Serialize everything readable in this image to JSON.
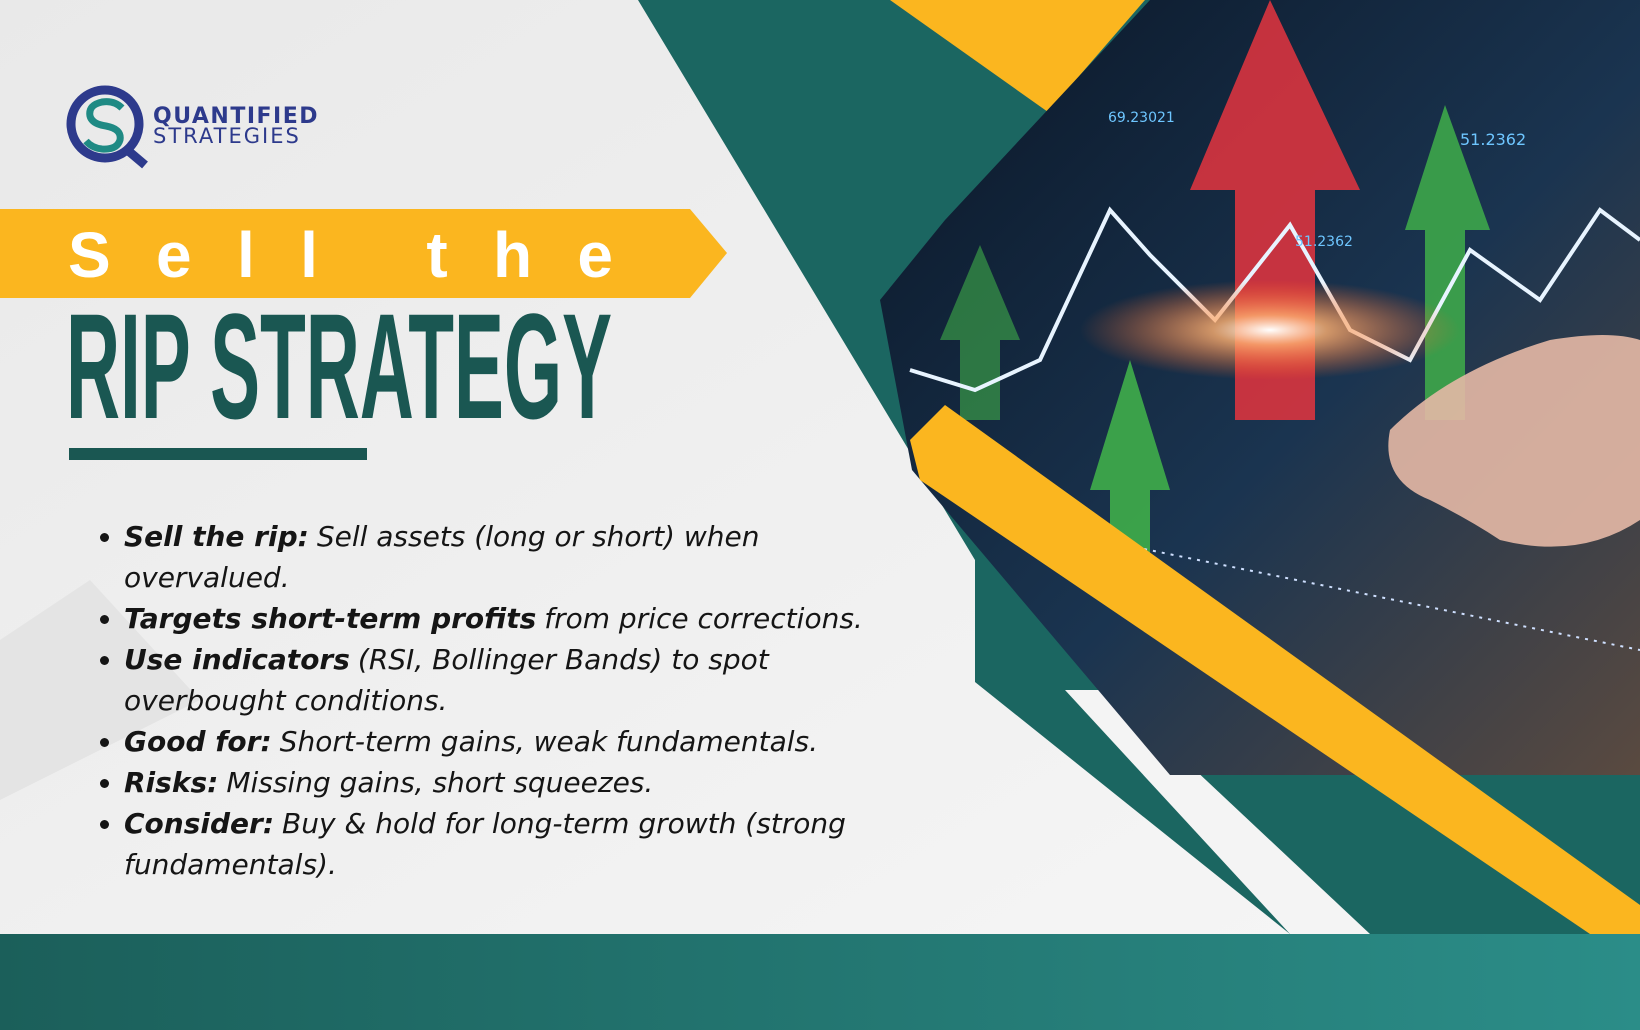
{
  "logo": {
    "line1": "QUANTIFIED",
    "line2": "STRATEGIES"
  },
  "title": {
    "line1": "Sell the",
    "line2": "RIP STRATEGY"
  },
  "bullets": [
    {
      "bold": "Sell the rip:",
      "text": "Sell assets (long or short) when overvalued."
    },
    {
      "bold": "Targets short-term profits",
      "text": "from price corrections."
    },
    {
      "bold": "Use indicators",
      "text": "(RSI, Bollinger Bands) to spot overbought conditions."
    },
    {
      "bold": "Good for:",
      "text": "Short-term gains, weak fundamentals."
    },
    {
      "bold": "Risks:",
      "text": "Missing gains, short squeezes."
    },
    {
      "bold": "Consider:",
      "text": "Buy & hold for long-term growth (strong fundamentals)."
    }
  ],
  "image_labels": [
    "69.23021",
    "51.2362",
    "51.2362"
  ]
}
